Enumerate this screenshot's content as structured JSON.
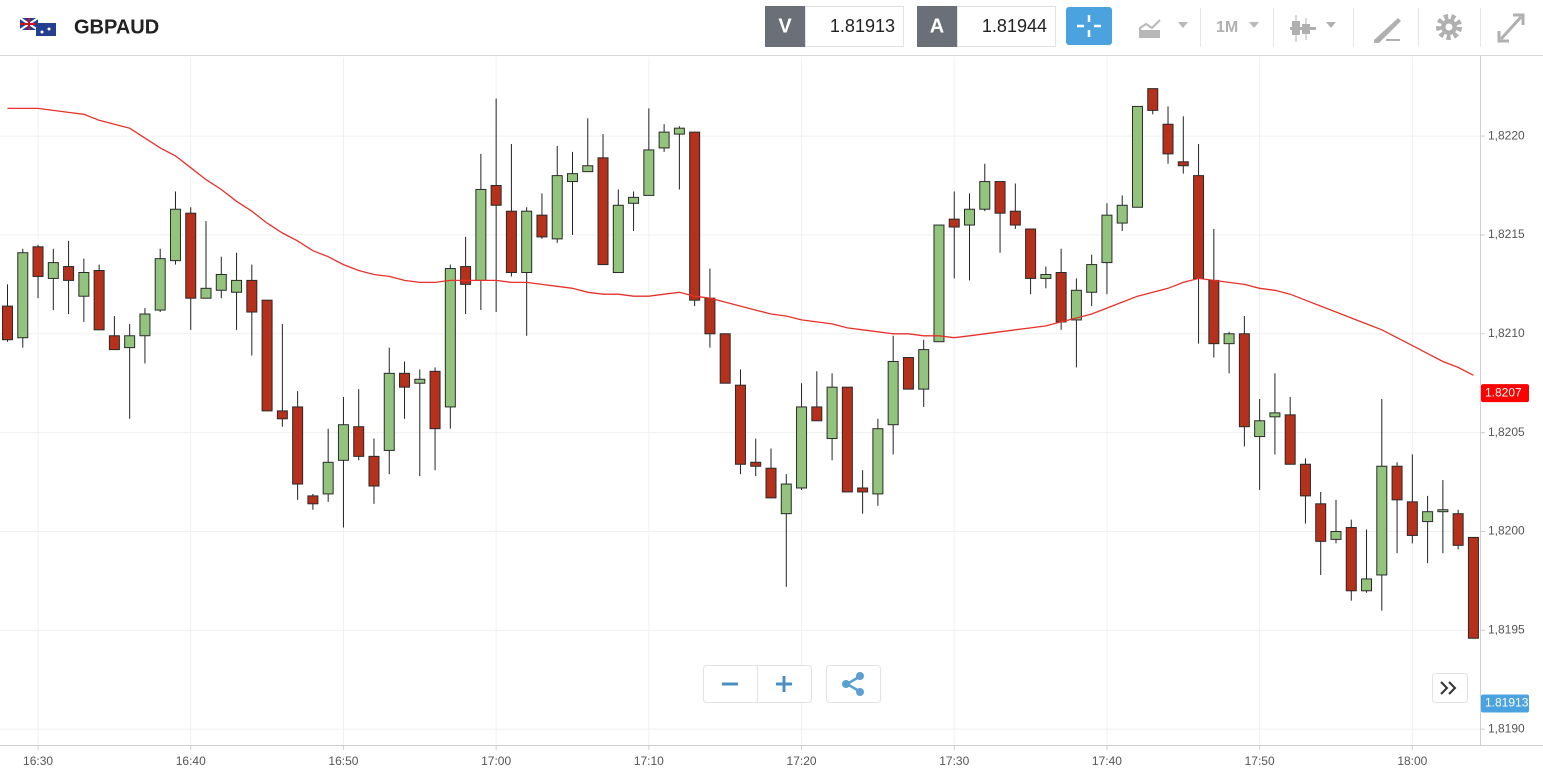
{
  "toolbar": {
    "symbol": "GBPAUD",
    "sell": {
      "label": "V",
      "price": 1.81913
    },
    "buy": {
      "label": "A",
      "price": 1.81944
    },
    "timeframe": "1M"
  },
  "chart_data": {
    "type": "candlestick",
    "x": [
      "16:28",
      "16:29",
      "16:30",
      "16:31",
      "16:32",
      "16:33",
      "16:34",
      "16:35",
      "16:36",
      "16:37",
      "16:38",
      "16:39",
      "16:40",
      "16:41",
      "16:42",
      "16:43",
      "16:44",
      "16:45",
      "16:46",
      "16:47",
      "16:48",
      "16:49",
      "16:50",
      "16:51",
      "16:52",
      "16:53",
      "16:54",
      "16:55",
      "16:56",
      "16:57",
      "16:58",
      "16:59",
      "17:00",
      "17:01",
      "17:02",
      "17:03",
      "17:04",
      "17:05",
      "17:06",
      "17:07",
      "17:08",
      "17:09",
      "17:10",
      "17:11",
      "17:12",
      "17:13",
      "17:14",
      "17:15",
      "17:16",
      "17:17",
      "17:18",
      "17:19",
      "17:20",
      "17:21",
      "17:22",
      "17:23",
      "17:24",
      "17:25",
      "17:26",
      "17:27",
      "17:28",
      "17:29",
      "17:30",
      "17:31",
      "17:32",
      "17:33",
      "17:34",
      "17:35",
      "17:36",
      "17:37",
      "17:38",
      "17:39",
      "17:40",
      "17:41",
      "17:42",
      "17:43",
      "17:44",
      "17:45",
      "17:46",
      "17:47",
      "17:48",
      "17:49",
      "17:50",
      "17:51",
      "17:52",
      "17:53",
      "17:54",
      "17:55",
      "17:56",
      "17:57",
      "17:58",
      "17:59",
      "18:00",
      "18:01",
      "18:02",
      "18:03",
      "18:04"
    ],
    "open": [
      1.82114,
      1.82098,
      1.82144,
      1.82128,
      1.82134,
      1.82119,
      1.82132,
      1.82099,
      1.82093,
      1.82099,
      1.82112,
      1.82137,
      1.82161,
      1.82118,
      1.82122,
      1.82121,
      1.82127,
      1.82117,
      1.82061,
      1.82063,
      1.82018,
      1.82019,
      1.82036,
      1.82053,
      1.82038,
      1.82041,
      1.8208,
      1.82075,
      1.82081,
      1.82063,
      1.82134,
      1.82127,
      1.82175,
      1.82162,
      1.82131,
      1.8216,
      1.82148,
      1.82177,
      1.82182,
      1.82189,
      1.82131,
      1.82166,
      1.8217,
      1.82194,
      1.82201,
      1.82202,
      1.82118,
      1.821,
      1.82074,
      1.82035,
      1.82032,
      1.82009,
      1.82022,
      1.82063,
      1.82047,
      1.82073,
      1.82022,
      1.82019,
      1.82054,
      1.82088,
      1.82072,
      1.82096,
      1.82158,
      1.82155,
      1.82163,
      1.82177,
      1.82162,
      1.82153,
      1.82128,
      1.82131,
      1.82107,
      1.82121,
      1.82136,
      1.82156,
      1.82164,
      1.82224,
      1.82206,
      1.82187,
      1.8218,
      1.82127,
      1.82095,
      1.821,
      1.82048,
      1.82058,
      1.82059,
      1.82034,
      1.82014,
      1.81996,
      1.82002,
      1.8197,
      1.81978,
      1.82033,
      1.82015,
      1.82005,
      1.8201,
      1.82009,
      1.81997
    ],
    "high": [
      1.82125,
      1.82143,
      1.82145,
      1.82143,
      1.82147,
      1.82138,
      1.82135,
      1.82109,
      1.82105,
      1.82113,
      1.82143,
      1.82172,
      1.82164,
      1.82157,
      1.82139,
      1.82141,
      1.82135,
      1.82117,
      1.82105,
      1.82071,
      1.82019,
      1.82052,
      1.82068,
      1.82072,
      1.82047,
      1.82093,
      1.82086,
      1.82082,
      1.82083,
      1.82135,
      1.82149,
      1.82191,
      1.82219,
      1.82196,
      1.82164,
      1.82171,
      1.82195,
      1.82192,
      1.82209,
      1.82201,
      1.82173,
      1.82172,
      1.82214,
      1.82206,
      1.82205,
      1.82202,
      1.82133,
      1.821,
      1.82082,
      1.82047,
      1.82042,
      1.82029,
      1.82075,
      1.82081,
      1.8208,
      1.82073,
      1.82031,
      1.82057,
      1.82099,
      1.82088,
      1.82097,
      1.82155,
      1.82172,
      1.82171,
      1.82186,
      1.82177,
      1.82176,
      1.82153,
      1.82134,
      1.82143,
      1.82128,
      1.8214,
      1.82166,
      1.8217,
      1.82215,
      1.82224,
      1.82215,
      1.8221,
      1.82196,
      1.82153,
      1.82101,
      1.82109,
      1.82067,
      1.8208,
      1.82068,
      1.82037,
      1.8202,
      1.82016,
      1.82006,
      1.82001,
      1.82067,
      1.82035,
      1.82039,
      1.82018,
      1.82026,
      1.82011,
      1.81997
    ],
    "low": [
      1.82096,
      1.82093,
      1.82118,
      1.82112,
      1.8211,
      1.82106,
      1.82102,
      1.82092,
      1.82057,
      1.82085,
      1.82111,
      1.82135,
      1.82102,
      1.82118,
      1.82118,
      1.82102,
      1.82089,
      1.82061,
      1.82053,
      1.82016,
      1.82011,
      1.82015,
      1.82002,
      1.82036,
      1.82014,
      1.82029,
      1.82057,
      1.82028,
      1.82031,
      1.82052,
      1.8211,
      1.82112,
      1.82111,
      1.82129,
      1.82099,
      1.82148,
      1.82146,
      1.8215,
      1.82182,
      1.82135,
      1.82131,
      1.82152,
      1.8217,
      1.82192,
      1.82173,
      1.82114,
      1.82093,
      1.82075,
      1.82029,
      1.82028,
      1.82017,
      1.81972,
      1.82021,
      1.82056,
      1.82036,
      1.8202,
      1.82009,
      1.82013,
      1.82039,
      1.82072,
      1.82063,
      1.82096,
      1.82128,
      1.82127,
      1.82162,
      1.82141,
      1.82153,
      1.8212,
      1.82123,
      1.82102,
      1.82083,
      1.82114,
      1.8212,
      1.82152,
      1.82164,
      1.82211,
      1.82186,
      1.82181,
      1.82095,
      1.82088,
      1.8208,
      1.82043,
      1.82021,
      1.82039,
      1.82034,
      1.82004,
      1.81978,
      1.81994,
      1.81965,
      1.81969,
      1.8196,
      1.81989,
      1.81994,
      1.81984,
      1.81989,
      1.81991,
      1.81946
    ],
    "close": [
      1.82097,
      1.82141,
      1.82129,
      1.82136,
      1.82127,
      1.82131,
      1.82102,
      1.82092,
      1.82099,
      1.8211,
      1.82138,
      1.82163,
      1.82118,
      1.82123,
      1.8213,
      1.82127,
      1.82111,
      1.82061,
      1.82057,
      1.82024,
      1.82014,
      1.82035,
      1.82054,
      1.82038,
      1.82023,
      1.8208,
      1.82073,
      1.82077,
      1.82052,
      1.82133,
      1.82125,
      1.82173,
      1.82165,
      1.82131,
      1.82162,
      1.82149,
      1.8218,
      1.82181,
      1.82185,
      1.82135,
      1.82165,
      1.82169,
      1.82193,
      1.82202,
      1.82204,
      1.82117,
      1.821,
      1.82075,
      1.82034,
      1.82033,
      1.82017,
      1.82024,
      1.82063,
      1.82056,
      1.82073,
      1.8202,
      1.8202,
      1.82052,
      1.82086,
      1.82072,
      1.82092,
      1.82155,
      1.82154,
      1.82163,
      1.82177,
      1.82161,
      1.82155,
      1.82128,
      1.8213,
      1.82106,
      1.82122,
      1.82135,
      1.8216,
      1.82165,
      1.82215,
      1.82213,
      1.82191,
      1.82185,
      1.82128,
      1.82095,
      1.821,
      1.82053,
      1.82056,
      1.8206,
      1.82034,
      1.82018,
      1.81995,
      1.82,
      1.8197,
      1.81976,
      1.82033,
      1.82016,
      1.81998,
      1.8201,
      1.82011,
      1.81993,
      1.81946
    ],
    "up_color": "#93c47d",
    "down_color": "#b5311b",
    "ma_values": [
      1.82214,
      1.82214,
      1.82214,
      1.82213,
      1.82212,
      1.82211,
      1.82208,
      1.82206,
      1.82204,
      1.82199,
      1.82194,
      1.8219,
      1.82184,
      1.82178,
      1.82173,
      1.82167,
      1.82162,
      1.82156,
      1.82151,
      1.82147,
      1.82142,
      1.82139,
      1.82135,
      1.82132,
      1.8213,
      1.82129,
      1.82127,
      1.82126,
      1.82126,
      1.82127,
      1.82127,
      1.82127,
      1.82127,
      1.82126,
      1.82126,
      1.82125,
      1.82124,
      1.82123,
      1.82121,
      1.8212,
      1.8212,
      1.82119,
      1.82119,
      1.8212,
      1.82121,
      1.82119,
      1.82118,
      1.82116,
      1.82114,
      1.82112,
      1.8211,
      1.82109,
      1.82107,
      1.82106,
      1.82105,
      1.82103,
      1.82102,
      1.82101,
      1.821,
      1.821,
      1.82099,
      1.82099,
      1.82098,
      1.82099,
      1.821,
      1.82101,
      1.82102,
      1.82103,
      1.82104,
      1.82106,
      1.82108,
      1.8211,
      1.82113,
      1.82116,
      1.82119,
      1.82121,
      1.82123,
      1.82126,
      1.82128,
      1.82127,
      1.82126,
      1.82125,
      1.82123,
      1.82122,
      1.8212,
      1.82117,
      1.82114,
      1.82111,
      1.82108,
      1.82105,
      1.82102,
      1.82098,
      1.82094,
      1.8209,
      1.82086,
      1.82083,
      1.82079
    ],
    "ma_color": "#e8312a",
    "price_markers": [
      {
        "value": 1.8207,
        "color": "#ff0000"
      },
      {
        "value": 1.81913,
        "color": "#4aa3df"
      }
    ],
    "ylim": [
      1.81892,
      1.8224
    ],
    "yticks": [
      {
        "value": 1.819,
        "label": "1,8190"
      },
      {
        "value": 1.8195,
        "label": "1,8195"
      },
      {
        "value": 1.82,
        "label": "1,8200"
      },
      {
        "value": 1.8205,
        "label": "1,8205"
      },
      {
        "value": 1.821,
        "label": "1,8210"
      },
      {
        "value": 1.8215,
        "label": "1,8215"
      },
      {
        "value": 1.822,
        "label": "1,8220"
      }
    ],
    "xticks": [
      "16:30",
      "16:40",
      "16:50",
      "17:00",
      "17:10",
      "17:20",
      "17:30",
      "17:40",
      "17:50",
      "18:00"
    ],
    "grid": true
  }
}
